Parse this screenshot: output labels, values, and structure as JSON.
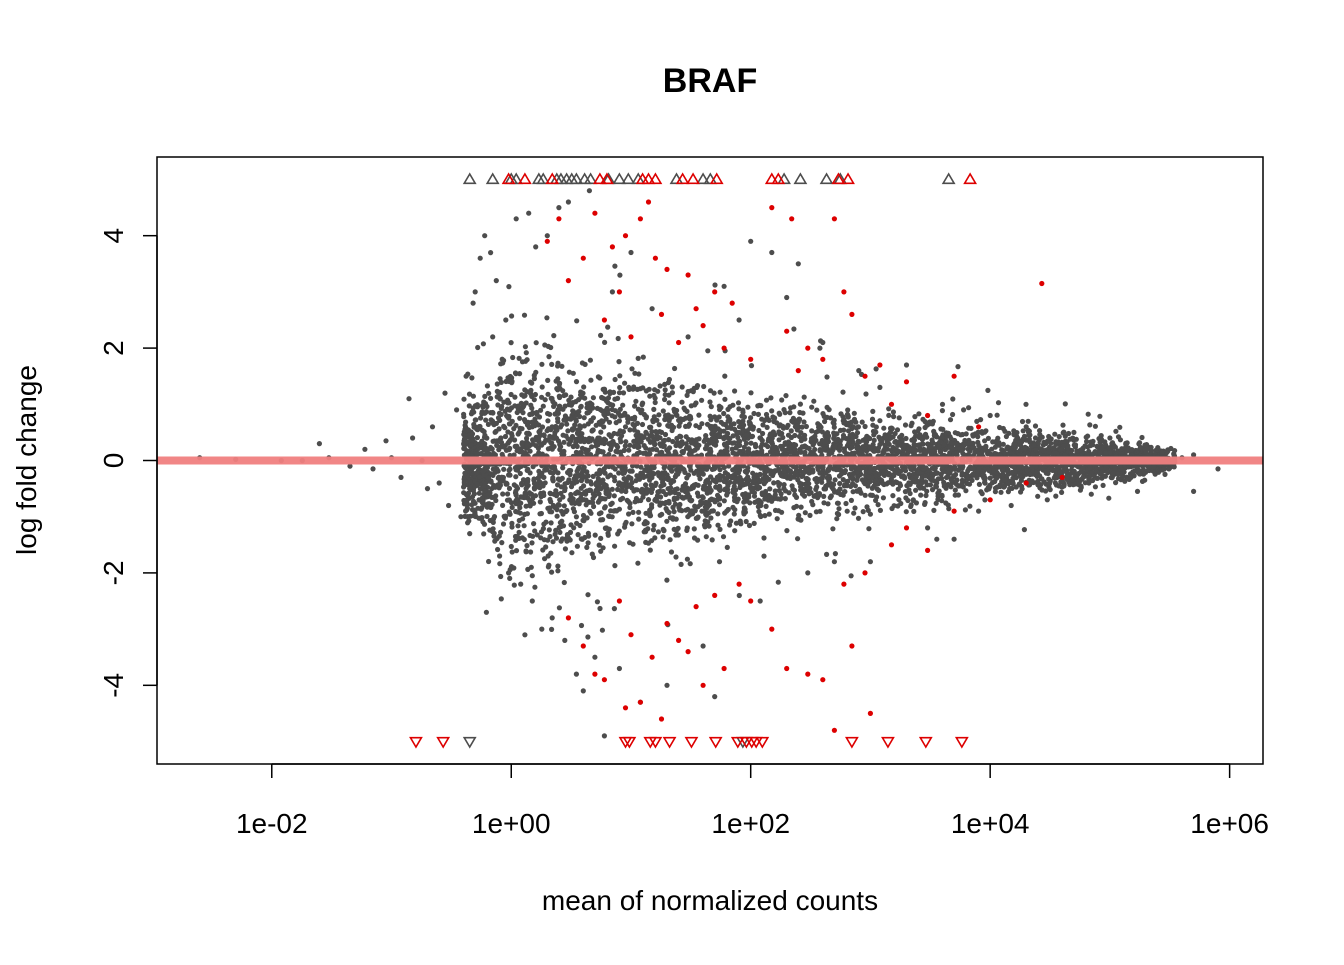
{
  "chart_data": {
    "type": "scatter",
    "title": "BRAF",
    "xlabel": "mean of normalized counts",
    "ylabel": "log fold change",
    "x_scale": "log10",
    "xlim": [
      0.0011,
      1900000
    ],
    "ylim": [
      -5.4,
      5.4
    ],
    "x_ticks": [
      {
        "value": 0.01,
        "label": "1e-02"
      },
      {
        "value": 1,
        "label": "1e+00"
      },
      {
        "value": 100,
        "label": "1e+02"
      },
      {
        "value": 10000,
        "label": "1e+04"
      },
      {
        "value": 1000000,
        "label": "1e+06"
      }
    ],
    "y_ticks": [
      {
        "value": -4,
        "label": "-4"
      },
      {
        "value": -2,
        "label": "-2"
      },
      {
        "value": 0,
        "label": "0"
      },
      {
        "value": 2,
        "label": "2"
      },
      {
        "value": 4,
        "label": "4"
      }
    ],
    "reference_line": {
      "y": 0,
      "color": "#f08080"
    },
    "grid": false,
    "legend": "none",
    "colors": {
      "non_significant": "#4d4d4d",
      "significant": "#dd0000",
      "reference_line": "#f08080"
    },
    "bulk_envelope": [
      [
        0.5,
        0.5,
        -1.2
      ],
      [
        1,
        1.8,
        -1.6
      ],
      [
        3,
        1.6,
        -1.5
      ],
      [
        10,
        1.3,
        -1.4
      ],
      [
        100,
        0.9,
        -0.95
      ],
      [
        1000,
        0.7,
        -0.75
      ],
      [
        10000,
        0.5,
        -0.55
      ],
      [
        100000,
        0.35,
        -0.35
      ],
      [
        300000,
        0.15,
        -0.15
      ]
    ],
    "series": [
      {
        "name": "not significant",
        "color": "#4d4d4d",
        "marker": "dot",
        "points": [
          [
            0.0025,
            0.05
          ],
          [
            0.005,
            0.02
          ],
          [
            0.012,
            0.0
          ],
          [
            0.018,
            0.0
          ],
          [
            0.025,
            0.3
          ],
          [
            0.03,
            0.05
          ],
          [
            0.045,
            -0.1
          ],
          [
            0.06,
            0.2
          ],
          [
            0.07,
            -0.15
          ],
          [
            0.09,
            0.35
          ],
          [
            0.1,
            0.05
          ],
          [
            0.12,
            -0.3
          ],
          [
            0.15,
            0.4
          ],
          [
            0.18,
            0.0
          ],
          [
            0.2,
            -0.5
          ],
          [
            0.14,
            1.1
          ],
          [
            0.22,
            0.6
          ],
          [
            0.25,
            -0.4
          ],
          [
            0.28,
            1.2
          ],
          [
            0.3,
            -0.8
          ],
          [
            0.35,
            0.9
          ],
          [
            0.38,
            -1.0
          ],
          [
            0.42,
            1.5
          ],
          [
            0.45,
            -1.3
          ],
          [
            0.48,
            2.8
          ],
          [
            0.5,
            3.0
          ],
          [
            0.55,
            3.6
          ],
          [
            0.6,
            4.0
          ],
          [
            0.62,
            -2.7
          ],
          [
            0.7,
            2.2
          ],
          [
            0.75,
            3.2
          ],
          [
            0.8,
            -1.7
          ],
          [
            0.9,
            2.5
          ],
          [
            0.95,
            -2.0
          ],
          [
            1.1,
            4.3
          ],
          [
            1.2,
            -2.2
          ],
          [
            1.4,
            4.4
          ],
          [
            1.5,
            -2.5
          ],
          [
            1.6,
            3.8
          ],
          [
            1.8,
            -3.0
          ],
          [
            2.0,
            4.0
          ],
          [
            2.2,
            -2.8
          ],
          [
            2.5,
            4.5
          ],
          [
            2.8,
            -3.2
          ],
          [
            3.0,
            4.6
          ],
          [
            3.5,
            -3.8
          ],
          [
            4.0,
            -4.1
          ],
          [
            4.5,
            4.8
          ],
          [
            5.0,
            -3.5
          ],
          [
            6.0,
            -4.9
          ],
          [
            7.0,
            3.0
          ],
          [
            8.0,
            -3.7
          ],
          [
            10,
            3.7
          ],
          [
            12,
            -4.3
          ],
          [
            15,
            2.7
          ],
          [
            20,
            -4.0
          ],
          [
            30,
            2.2
          ],
          [
            40,
            -3.3
          ],
          [
            50,
            -4.2
          ],
          [
            60,
            3.1
          ],
          [
            80,
            2.5
          ],
          [
            100,
            3.9
          ],
          [
            120,
            -2.5
          ],
          [
            150,
            3.7
          ],
          [
            200,
            2.9
          ],
          [
            250,
            3.5
          ],
          [
            300,
            -2.0
          ],
          [
            400,
            2.1
          ],
          [
            500,
            -1.8
          ],
          [
            800,
            1.6
          ],
          [
            1000,
            -1.8
          ],
          [
            1200,
            1.3
          ],
          [
            2000,
            1.7
          ],
          [
            3000,
            -1.2
          ],
          [
            4000,
            1.0
          ],
          [
            5000,
            -1.4
          ],
          [
            6000,
            0.9
          ],
          [
            8000,
            -0.9
          ],
          [
            10000,
            0.8
          ],
          [
            15000,
            -0.8
          ],
          [
            20000,
            0.6
          ],
          [
            30000,
            -0.7
          ],
          [
            50000,
            0.5
          ],
          [
            70000,
            -0.6
          ],
          [
            100000,
            0.4
          ],
          [
            150000,
            -0.3
          ],
          [
            200000,
            0.15
          ],
          [
            300000,
            0.0
          ],
          [
            400000,
            0.05
          ],
          [
            500000,
            0.1
          ],
          [
            500000,
            -0.55
          ],
          [
            800000,
            -0.15
          ],
          [
            170000,
            -0.55
          ]
        ]
      },
      {
        "name": "significant",
        "color": "#dd0000",
        "marker": "dot",
        "points": [
          [
            2.0,
            3.9
          ],
          [
            2.5,
            4.3
          ],
          [
            3.0,
            3.2
          ],
          [
            4.0,
            3.6
          ],
          [
            5.0,
            4.4
          ],
          [
            6.0,
            2.5
          ],
          [
            7.0,
            3.8
          ],
          [
            8.0,
            3.0
          ],
          [
            9.0,
            4.0
          ],
          [
            10,
            2.2
          ],
          [
            12,
            4.3
          ],
          [
            14,
            4.6
          ],
          [
            16,
            3.6
          ],
          [
            18,
            2.6
          ],
          [
            20,
            3.4
          ],
          [
            25,
            2.1
          ],
          [
            30,
            3.3
          ],
          [
            35,
            2.7
          ],
          [
            40,
            2.4
          ],
          [
            50,
            3.0
          ],
          [
            60,
            2.0
          ],
          [
            70,
            2.8
          ],
          [
            100,
            1.8
          ],
          [
            150,
            4.5
          ],
          [
            200,
            2.3
          ],
          [
            220,
            4.3
          ],
          [
            250,
            1.6
          ],
          [
            300,
            2.0
          ],
          [
            400,
            1.8
          ],
          [
            500,
            4.3
          ],
          [
            600,
            3.0
          ],
          [
            700,
            2.6
          ],
          [
            900,
            1.5
          ],
          [
            1200,
            1.7
          ],
          [
            1500,
            1.0
          ],
          [
            2000,
            1.4
          ],
          [
            3000,
            0.8
          ],
          [
            5000,
            1.5
          ],
          [
            8000,
            0.6
          ],
          [
            27000,
            3.15
          ],
          [
            3.0,
            -2.8
          ],
          [
            4.0,
            -3.3
          ],
          [
            5.0,
            -3.8
          ],
          [
            6.0,
            -3.9
          ],
          [
            8.0,
            -2.5
          ],
          [
            9.0,
            -4.4
          ],
          [
            10,
            -3.1
          ],
          [
            12,
            -4.3
          ],
          [
            15,
            -3.5
          ],
          [
            18,
            -4.6
          ],
          [
            20,
            -2.9
          ],
          [
            25,
            -3.2
          ],
          [
            30,
            -3.4
          ],
          [
            35,
            -2.6
          ],
          [
            40,
            -4.0
          ],
          [
            50,
            -2.4
          ],
          [
            60,
            -3.7
          ],
          [
            80,
            -2.2
          ],
          [
            100,
            -2.5
          ],
          [
            150,
            -3.0
          ],
          [
            200,
            -3.7
          ],
          [
            300,
            -3.8
          ],
          [
            400,
            -3.9
          ],
          [
            500,
            -4.8
          ],
          [
            600,
            -2.2
          ],
          [
            700,
            -3.3
          ],
          [
            900,
            -2.0
          ],
          [
            1000,
            -4.5
          ],
          [
            1500,
            -1.5
          ],
          [
            2000,
            -1.2
          ],
          [
            3000,
            -1.6
          ],
          [
            5000,
            -0.9
          ],
          [
            10000,
            -0.7
          ],
          [
            20000,
            -0.4
          ],
          [
            40000,
            -0.3
          ]
        ]
      },
      {
        "name": "off-scale up",
        "color": "#4d4d4d",
        "marker": "triangle-up",
        "points": [
          [
            0.45,
            5.0
          ],
          [
            0.7,
            5.0
          ],
          [
            1.0,
            5.0
          ],
          [
            1.1,
            5.0
          ],
          [
            1.7,
            5.0
          ],
          [
            1.85,
            5.0
          ],
          [
            2.4,
            5.0
          ],
          [
            2.6,
            5.0
          ],
          [
            2.9,
            5.0
          ],
          [
            3.2,
            5.0
          ],
          [
            3.5,
            5.0
          ],
          [
            4.1,
            5.0
          ],
          [
            4.6,
            5.0
          ],
          [
            6.5,
            5.0
          ],
          [
            8.0,
            5.0
          ],
          [
            9.5,
            5.0
          ],
          [
            11.5,
            5.0
          ],
          [
            24,
            5.0
          ],
          [
            40,
            5.0
          ],
          [
            46,
            5.0
          ],
          [
            190,
            5.0
          ],
          [
            260,
            5.0
          ],
          [
            430,
            5.0
          ],
          [
            560,
            5.0
          ],
          [
            4500,
            5.0
          ]
        ]
      },
      {
        "name": "off-scale up significant",
        "color": "#dd0000",
        "marker": "triangle-up",
        "points": [
          [
            0.95,
            5.0
          ],
          [
            1.3,
            5.0
          ],
          [
            2.2,
            5.0
          ],
          [
            5.5,
            5.0
          ],
          [
            6.3,
            5.0
          ],
          [
            12.5,
            5.0
          ],
          [
            14,
            5.0
          ],
          [
            16,
            5.0
          ],
          [
            27,
            5.0
          ],
          [
            33,
            5.0
          ],
          [
            52,
            5.0
          ],
          [
            150,
            5.0
          ],
          [
            170,
            5.0
          ],
          [
            540,
            5.0
          ],
          [
            650,
            5.0
          ],
          [
            6800,
            5.0
          ]
        ]
      },
      {
        "name": "off-scale down",
        "color": "#4d4d4d",
        "marker": "triangle-down",
        "points": [
          [
            0.45,
            -5.0
          ],
          [
            86,
            -5.0
          ]
        ]
      },
      {
        "name": "off-scale down significant",
        "color": "#dd0000",
        "marker": "triangle-down",
        "points": [
          [
            0.16,
            -5.0
          ],
          [
            0.27,
            -5.0
          ],
          [
            9.0,
            -5.0
          ],
          [
            9.7,
            -5.0
          ],
          [
            14.5,
            -5.0
          ],
          [
            16,
            -5.0
          ],
          [
            21,
            -5.0
          ],
          [
            32,
            -5.0
          ],
          [
            51,
            -5.0
          ],
          [
            78,
            -5.0
          ],
          [
            92,
            -5.0
          ],
          [
            102,
            -5.0
          ],
          [
            111,
            -5.0
          ],
          [
            125,
            -5.0
          ],
          [
            700,
            -5.0
          ],
          [
            1400,
            -5.0
          ],
          [
            2900,
            -5.0
          ],
          [
            5800,
            -5.0
          ]
        ]
      }
    ]
  }
}
